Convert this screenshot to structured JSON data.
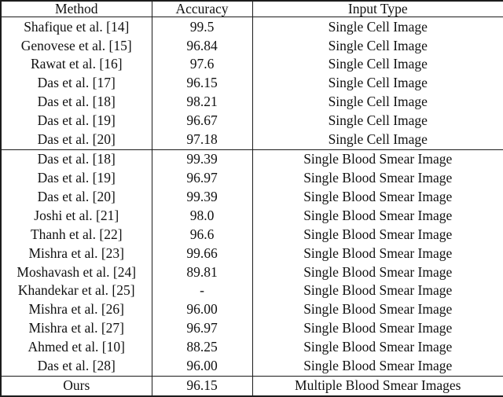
{
  "table": {
    "columns": [
      {
        "label": "Method"
      },
      {
        "label": "Accuracy"
      },
      {
        "label": "Input Type"
      }
    ],
    "sections": [
      {
        "rows": [
          {
            "method": "Shafique et al. [14]",
            "accuracy": "99.5",
            "accuracy_bold": true,
            "input_type": "Single Cell Image"
          },
          {
            "method": "Genovese et al. [15]",
            "accuracy": "96.84",
            "accuracy_bold": false,
            "input_type": "Single Cell Image"
          },
          {
            "method": "Rawat et al. [16]",
            "accuracy": "97.6",
            "accuracy_bold": false,
            "input_type": "Single Cell Image"
          },
          {
            "method": "Das et al. [17]",
            "accuracy": "96.15",
            "accuracy_bold": false,
            "input_type": "Single Cell Image"
          },
          {
            "method": "Das et al. [18]",
            "accuracy": "98.21",
            "accuracy_bold": false,
            "input_type": "Single Cell Image"
          },
          {
            "method": "Das et al. [19]",
            "accuracy": "96.67",
            "accuracy_bold": false,
            "input_type": "Single Cell Image"
          },
          {
            "method": "Das et al. [20]",
            "accuracy": "97.18",
            "accuracy_bold": false,
            "input_type": "Single Cell Image"
          }
        ]
      },
      {
        "rows": [
          {
            "method": "Das et al. [18]",
            "accuracy": "99.39",
            "accuracy_bold": false,
            "input_type": "Single Blood Smear Image"
          },
          {
            "method": "Das et al. [19]",
            "accuracy": "96.97",
            "accuracy_bold": false,
            "input_type": "Single Blood Smear Image"
          },
          {
            "method": "Das et al. [20]",
            "accuracy": "99.39",
            "accuracy_bold": false,
            "input_type": "Single Blood Smear Image"
          },
          {
            "method": "Joshi et al. [21]",
            "accuracy": "98.0",
            "accuracy_bold": false,
            "input_type": "Single Blood Smear Image"
          },
          {
            "method": "Thanh et al. [22]",
            "accuracy": "96.6",
            "accuracy_bold": false,
            "input_type": "Single Blood Smear Image"
          },
          {
            "method": "Mishra et al. [23]",
            "accuracy": "99.66",
            "accuracy_bold": true,
            "input_type": "Single Blood Smear Image"
          },
          {
            "method": "Moshavash et al. [24]",
            "accuracy": "89.81",
            "accuracy_bold": false,
            "input_type": "Single Blood Smear Image"
          },
          {
            "method": "Khandekar et al. [25]",
            "accuracy": "-",
            "accuracy_bold": false,
            "input_type": "Single Blood Smear Image"
          },
          {
            "method": "Mishra et al. [26]",
            "accuracy": "96.00",
            "accuracy_bold": false,
            "input_type": "Single Blood Smear Image"
          },
          {
            "method": "Mishra et al. [27]",
            "accuracy": "96.97",
            "accuracy_bold": false,
            "input_type": "Single Blood Smear Image"
          },
          {
            "method": "Ahmed et al. [10]",
            "accuracy": "88.25",
            "accuracy_bold": false,
            "input_type": "Single Blood Smear Image"
          },
          {
            "method": "Das et al. [28]",
            "accuracy": "96.00",
            "accuracy_bold": false,
            "input_type": "Single Blood Smear Image"
          }
        ]
      },
      {
        "rows": [
          {
            "method": "Ours",
            "accuracy": "96.15",
            "accuracy_bold": false,
            "input_type": "Multiple Blood Smear Images"
          }
        ]
      }
    ]
  }
}
